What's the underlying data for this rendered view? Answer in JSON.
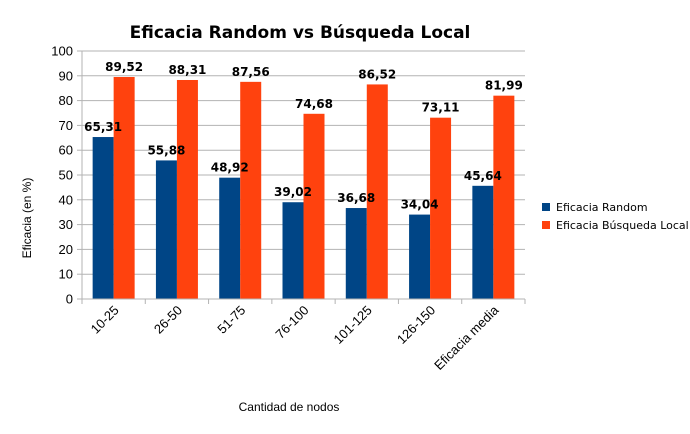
{
  "chart_data": {
    "type": "bar",
    "title": "Eficacia Random vs Búsqueda Local",
    "xlabel": "Cantidad de nodos",
    "ylabel": "Eficacia (en %)",
    "ylim": [
      0,
      100
    ],
    "yticks": [
      0,
      10,
      20,
      30,
      40,
      50,
      60,
      70,
      80,
      90,
      100
    ],
    "categories": [
      "10-25",
      "26-50",
      "51-75",
      "76-100",
      "101-125",
      "126-150",
      "Eficacia media"
    ],
    "series": [
      {
        "name": "Eficacia Random",
        "color": "#004586",
        "values": [
          65.31,
          55.88,
          48.92,
          39.02,
          36.68,
          34.04,
          45.64
        ],
        "labels": [
          "65,31",
          "55,88",
          "48,92",
          "39,02",
          "36,68",
          "34,04",
          "45,64"
        ]
      },
      {
        "name": "Eficacia Búsqueda Local",
        "color": "#ff420e",
        "values": [
          89.52,
          88.31,
          87.56,
          74.68,
          86.52,
          73.11,
          81.99
        ],
        "labels": [
          "89,52",
          "88,31",
          "87,56",
          "74,68",
          "86,52",
          "73,11",
          "81,99"
        ]
      }
    ],
    "grid": true,
    "legend": "right"
  }
}
